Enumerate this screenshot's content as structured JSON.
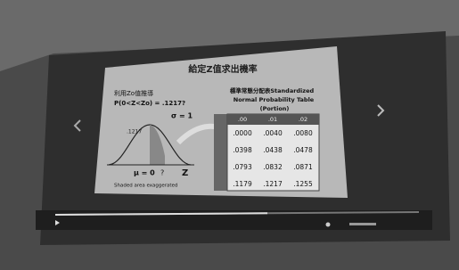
{
  "slide": {
    "title": "給定Z值求出機率",
    "left": {
      "heading": "利用Zo值推導",
      "formula": "P(0<Z<Zo) = .1217?",
      "sigma": "σ = 1",
      "area": ".1217",
      "mu": "μ = 0",
      "unknown": "?",
      "axis": "Z",
      "note": "Shaded area exaggerated"
    },
    "right": {
      "heading": "標準常態分配表Standardized",
      "heading2": "Normal Probability Table",
      "heading3": "(Portion)",
      "table": {
        "header": [
          ".00",
          ".01",
          ".02"
        ],
        "rows": [
          [
            ".0000",
            ".0040",
            ".0080"
          ],
          [
            ".0398",
            ".0438",
            ".0478"
          ],
          [
            ".0793",
            ".0832",
            ".0871"
          ],
          [
            ".1179",
            ".1217",
            ".1255"
          ]
        ]
      }
    }
  }
}
